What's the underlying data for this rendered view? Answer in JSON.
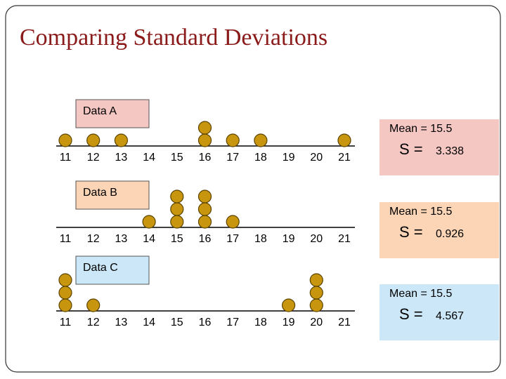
{
  "title": "Comparing Standard Deviations",
  "panels": [
    {
      "label": "Data A",
      "label_color": "#f4c7c3",
      "dots": [
        11,
        12,
        13,
        16,
        16,
        17,
        18,
        21
      ],
      "ticks": [
        11,
        12,
        13,
        14,
        15,
        16,
        17,
        18,
        19,
        20,
        21
      ],
      "mean": "Mean = 15.5",
      "s_label": "S =",
      "s_value": "3.338"
    },
    {
      "label": "Data B",
      "label_color": "#fbd5b5",
      "dots": [
        14,
        15,
        15,
        15,
        16,
        16,
        16,
        17
      ],
      "ticks": [
        11,
        12,
        13,
        14,
        15,
        16,
        17,
        18,
        19,
        20,
        21
      ],
      "mean": "Mean = 15.5",
      "s_label": "S =",
      "s_value": "0.926"
    },
    {
      "label": "Data C",
      "label_color": "#cce8f8",
      "dots": [
        11,
        11,
        11,
        12,
        19,
        20,
        20,
        20
      ],
      "ticks": [
        11,
        12,
        13,
        14,
        15,
        16,
        17,
        18,
        19,
        20,
        21
      ],
      "mean": "Mean = 15.5",
      "s_label": "S =",
      "s_value": "4.567"
    }
  ]
}
